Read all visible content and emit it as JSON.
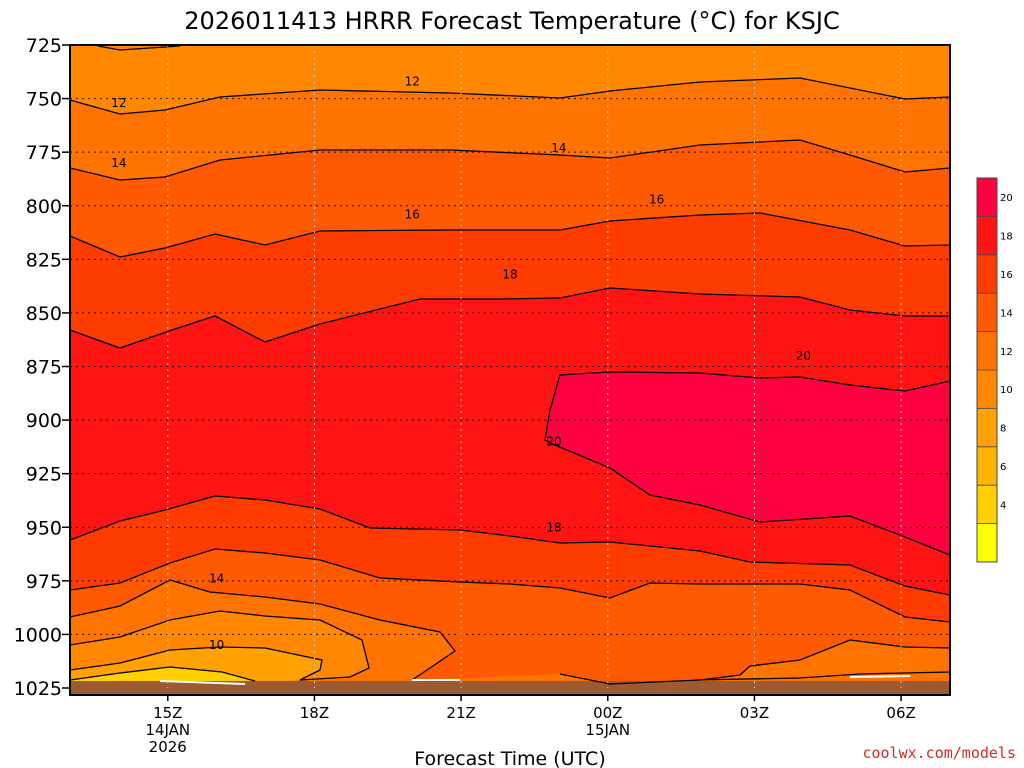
{
  "chart_data": {
    "type": "contour",
    "title": "2026011413 HRRR Forecast Temperature (°C) for KSJC",
    "xlabel": "Forecast Time (UTC)",
    "ylabel": "",
    "y_axis": {
      "quantity": "pressure (hPa)",
      "range": [
        1025,
        725
      ],
      "ticks": [
        725,
        750,
        775,
        800,
        825,
        850,
        875,
        900,
        925,
        950,
        975,
        1000,
        1025
      ]
    },
    "x_axis": {
      "range_hours_utc": [
        13,
        31
      ],
      "ticks": [
        {
          "hour": 15,
          "lines": [
            "15Z",
            "14JAN",
            "2026"
          ]
        },
        {
          "hour": 18,
          "lines": [
            "18Z"
          ]
        },
        {
          "hour": 21,
          "lines": [
            "21Z"
          ]
        },
        {
          "hour": 24,
          "lines": [
            "00Z",
            "15JAN"
          ]
        },
        {
          "hour": 27,
          "lines": [
            "03Z"
          ]
        },
        {
          "hour": 30,
          "lines": [
            "06Z"
          ]
        }
      ]
    },
    "contour_interval": 2,
    "contour_labels": [
      {
        "value": "12",
        "hour": 14.0,
        "pressure": 752
      },
      {
        "value": "12",
        "hour": 20.0,
        "pressure": 742
      },
      {
        "value": "14",
        "hour": 14.0,
        "pressure": 780
      },
      {
        "value": "14",
        "hour": 23.0,
        "pressure": 773
      },
      {
        "value": "16",
        "hour": 20.0,
        "pressure": 804
      },
      {
        "value": "16",
        "hour": 25.0,
        "pressure": 797
      },
      {
        "value": "18",
        "hour": 22.0,
        "pressure": 832
      },
      {
        "value": "20",
        "hour": 28.0,
        "pressure": 870
      },
      {
        "value": "20",
        "hour": 22.9,
        "pressure": 910
      },
      {
        "value": "18",
        "hour": 22.9,
        "pressure": 950
      },
      {
        "value": "14",
        "hour": 16.0,
        "pressure": 974
      },
      {
        "value": "10",
        "hour": 16.0,
        "pressure": 1005
      }
    ],
    "colorbar": {
      "ticks": [
        "20",
        "18",
        "16",
        "14",
        "12",
        "10",
        "8",
        "6",
        "4"
      ],
      "colors": [
        "#ff0040",
        "#ff1414",
        "#ff3c00",
        "#ff5a00",
        "#ff7300",
        "#ff8800",
        "#ffa100",
        "#ffb400",
        "#ffd000",
        "#ffff00"
      ]
    },
    "grid": true,
    "ground_color": "#9b5a32"
  },
  "credit": "coolwx.com/models"
}
